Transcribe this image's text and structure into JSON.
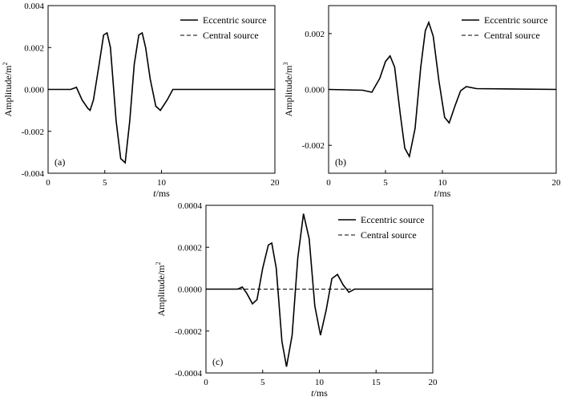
{
  "colors": {
    "line": "#000000",
    "background": "#ffffff"
  },
  "legend": {
    "eccentric": "Eccentric source",
    "central": "Central source"
  },
  "xlabel_prefix": "t",
  "xlabel_suffix": "/ms",
  "chart_data": [
    {
      "type": "line",
      "panel_label": "(a)",
      "ylabel_prefix": "Amplitude/m",
      "ylabel_sup": "2",
      "xlim": [
        0,
        20
      ],
      "ylim": [
        -0.004,
        0.004
      ],
      "xticks": [
        0,
        5,
        10,
        20
      ],
      "yticks": [
        -0.004,
        -0.002,
        0.0,
        0.002,
        0.004
      ],
      "ytick_labels": [
        "-0.004",
        "-0.002",
        "0.000",
        "0.002",
        "0.004"
      ],
      "legend_position": "top-right",
      "x": [
        0,
        2,
        2.5,
        3,
        3.5,
        3.7,
        4,
        4.5,
        4.9,
        5.2,
        5.5,
        6,
        6.4,
        6.8,
        7.2,
        7.6,
        8,
        8.3,
        8.6,
        9,
        9.5,
        9.9,
        10.5,
        11,
        11.5,
        20
      ],
      "series": [
        {
          "name": "Eccentric source",
          "style": "solid",
          "values": [
            0,
            0,
            0.0001,
            -0.0005,
            -0.0009,
            -0.001,
            -0.0005,
            0.0012,
            0.0026,
            0.0027,
            0.002,
            -0.0015,
            -0.0033,
            -0.0035,
            -0.0015,
            0.0012,
            0.0026,
            0.0027,
            0.002,
            0.0005,
            -0.0008,
            -0.001,
            -0.0005,
            0.0,
            0.0,
            0
          ]
        },
        {
          "name": "Central source",
          "style": "dashed",
          "values": [
            0,
            0,
            0.0001,
            -0.0005,
            -0.0009,
            -0.001,
            -0.0005,
            0.0012,
            0.0026,
            0.0027,
            0.002,
            -0.0015,
            -0.0033,
            -0.0035,
            -0.0015,
            0.0012,
            0.0026,
            0.0027,
            0.002,
            0.0005,
            -0.0008,
            -0.001,
            -0.0005,
            0.0,
            0.0,
            0
          ]
        }
      ]
    },
    {
      "type": "line",
      "panel_label": "(b)",
      "ylabel_prefix": "Amplitude/m",
      "ylabel_sup": "3",
      "xlim": [
        0,
        20
      ],
      "ylim": [
        -0.003,
        0.003
      ],
      "xticks": [
        0,
        5,
        10,
        20
      ],
      "yticks": [
        -0.002,
        0.0,
        0.002
      ],
      "ytick_labels": [
        "-0.002",
        "0.000",
        "0.002"
      ],
      "legend_position": "top-right",
      "x": [
        0,
        3,
        3.8,
        4.5,
        5,
        5.4,
        5.8,
        6.3,
        6.7,
        7.1,
        7.6,
        8.1,
        8.5,
        8.8,
        9.2,
        9.7,
        10.2,
        10.6,
        11.1,
        11.6,
        12.1,
        13,
        20
      ],
      "series": [
        {
          "name": "Eccentric source",
          "style": "solid",
          "values": [
            0,
            -3e-05,
            -0.0001,
            0.0004,
            0.001,
            0.0012,
            0.0008,
            -0.0009,
            -0.0021,
            -0.0024,
            -0.0014,
            0.0008,
            0.0021,
            0.0024,
            0.0019,
            0.0003,
            -0.001,
            -0.0012,
            -0.0006,
            -5e-05,
            0.0001,
            3e-05,
            0
          ]
        },
        {
          "name": "Central source",
          "style": "dashed",
          "values": [
            0,
            -3e-05,
            -0.0001,
            0.0004,
            0.001,
            0.0012,
            0.0008,
            -0.0009,
            -0.0021,
            -0.0024,
            -0.0014,
            0.0008,
            0.0021,
            0.0024,
            0.0019,
            0.0003,
            -0.001,
            -0.0012,
            -0.0006,
            -5e-05,
            0.0001,
            3e-05,
            0
          ]
        }
      ]
    },
    {
      "type": "line",
      "panel_label": "(c)",
      "ylabel_prefix": "Amplitude/m",
      "ylabel_sup": "2",
      "xlim": [
        0,
        20
      ],
      "ylim": [
        -0.0004,
        0.0004
      ],
      "xticks": [
        0,
        5,
        10,
        15,
        20
      ],
      "yticks": [
        -0.0004,
        -0.0002,
        0.0,
        0.0002,
        0.0004
      ],
      "ytick_labels": [
        "-0.0004",
        "-0.0002",
        "0.0000",
        "0.0002",
        "0.0004"
      ],
      "legend_position": "top-right",
      "x": [
        0,
        2.8,
        3.2,
        3.6,
        4.1,
        4.5,
        5,
        5.5,
        5.8,
        6.2,
        6.7,
        7.1,
        7.6,
        8.1,
        8.6,
        9.1,
        9.6,
        10.1,
        10.6,
        11.1,
        11.6,
        12.1,
        12.6,
        13.1,
        20
      ],
      "series": [
        {
          "name": "Eccentric source",
          "style": "solid",
          "values": [
            0,
            0,
            1e-05,
            -2e-05,
            -7e-05,
            -5e-05,
            0.0001,
            0.00021,
            0.00022,
            0.0001,
            -0.00025,
            -0.00037,
            -0.00022,
            0.00015,
            0.00036,
            0.00024,
            -8e-05,
            -0.00022,
            -0.0001,
            5e-05,
            7e-05,
            2e-05,
            -1.5e-05,
            0,
            0
          ]
        },
        {
          "name": "Central source",
          "style": "dashed",
          "values": [
            0,
            0,
            0,
            0,
            0,
            0,
            0,
            0,
            0,
            0,
            0,
            0,
            0,
            0,
            0,
            0,
            0,
            0,
            0,
            0,
            0,
            0,
            0,
            0,
            0
          ]
        }
      ]
    }
  ]
}
